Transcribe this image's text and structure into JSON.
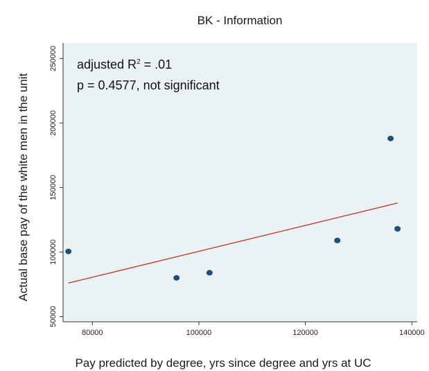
{
  "chart_data": {
    "type": "scatter",
    "title": "BK - Information",
    "xlabel": "Pay predicted by degree, yrs since degree and yrs at UC",
    "ylabel": "Actual base pay of the white men in the unit",
    "xlim": [
      74500,
      141000
    ],
    "ylim": [
      46000,
      262000
    ],
    "x_ticks": [
      80000,
      100000,
      120000,
      140000
    ],
    "x_tick_labels": [
      "80000",
      "100000",
      "120000",
      "140000"
    ],
    "y_ticks": [
      50000,
      100000,
      150000,
      200000,
      250000
    ],
    "y_tick_labels": [
      "50000",
      "100000",
      "150000",
      "200000",
      "250000"
    ],
    "points": [
      {
        "x": 75500,
        "y": 100500
      },
      {
        "x": 95800,
        "y": 80000
      },
      {
        "x": 102000,
        "y": 84000
      },
      {
        "x": 126000,
        "y": 109000
      },
      {
        "x": 136000,
        "y": 188000
      },
      {
        "x": 137300,
        "y": 118000
      }
    ],
    "fit_line": {
      "x": [
        75500,
        137300
      ],
      "y": [
        76000,
        138000
      ]
    },
    "annotation_r2_prefix": "adjusted R",
    "annotation_r2_sup": "2",
    "annotation_r2_suffix": " = .01",
    "annotation_p": "p = 0.4577, not significant",
    "grid": false,
    "legend": "none",
    "colors": {
      "plot_background": "#eaf2f3",
      "marker": "#1f4e79",
      "fit_line": "#c0392b",
      "axis": "#333333"
    }
  }
}
